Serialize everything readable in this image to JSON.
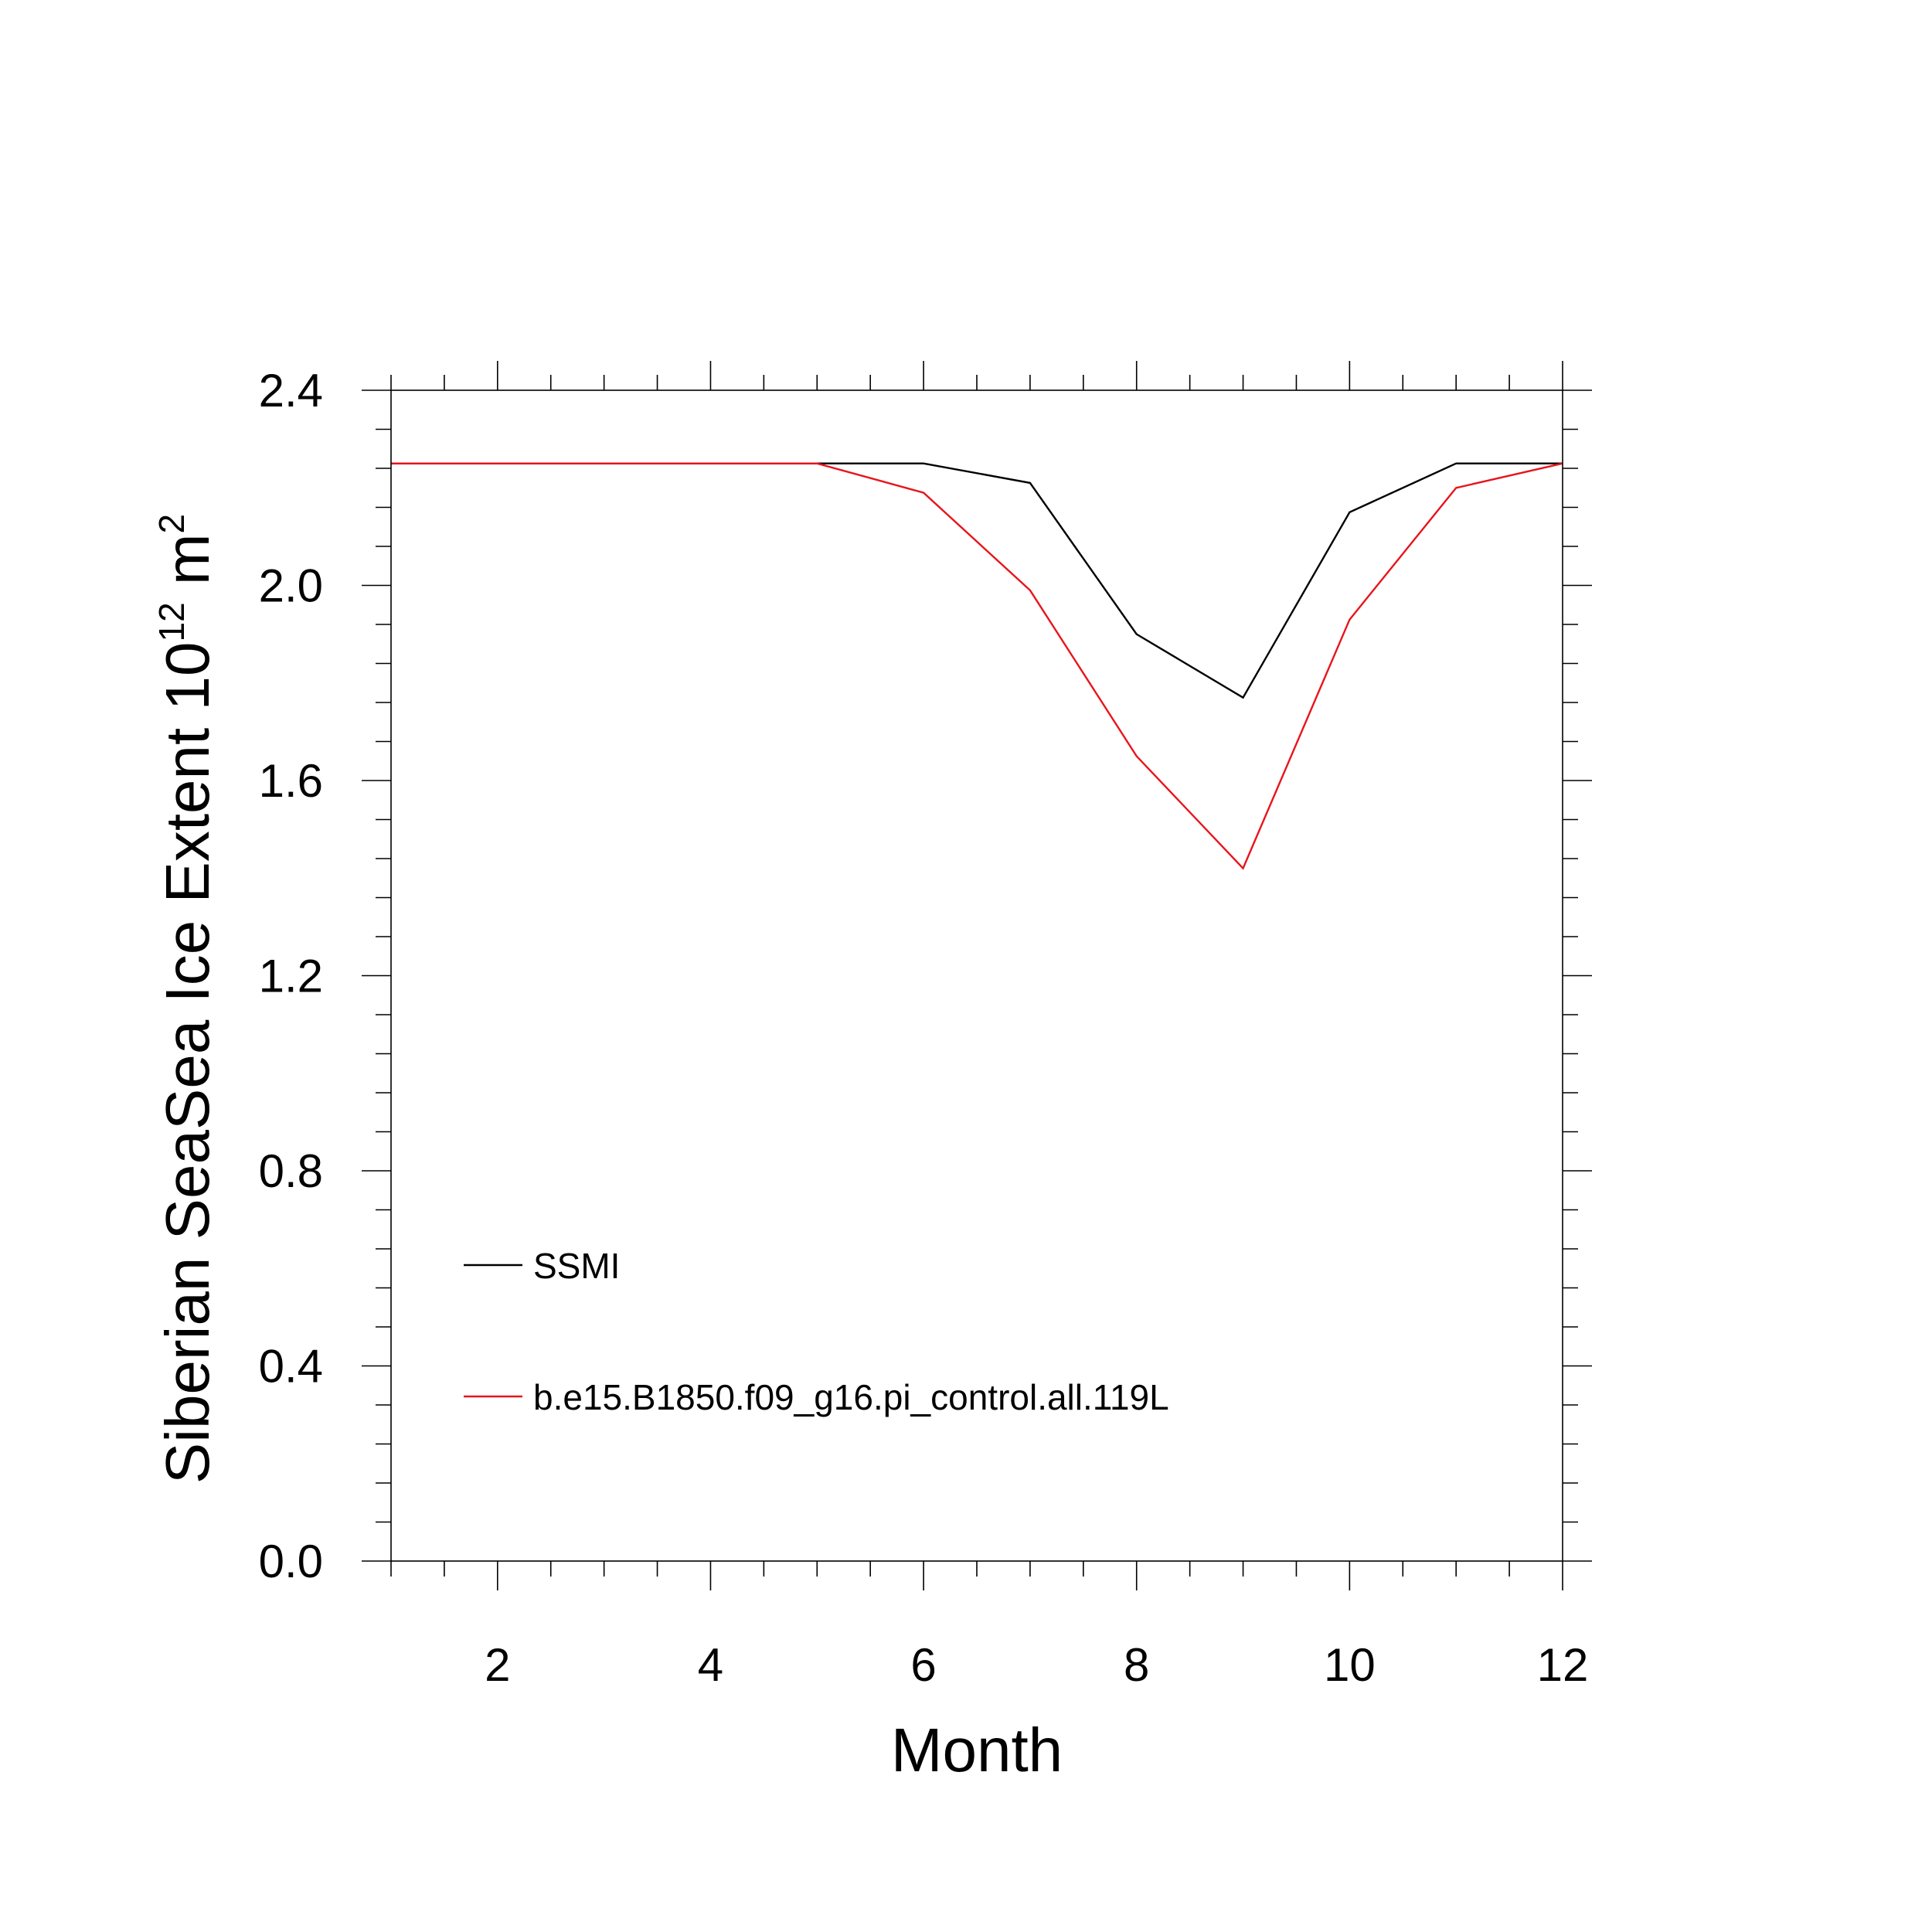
{
  "chart_data": {
    "type": "line",
    "xlabel": "Month",
    "ylabel": {
      "text": "Siberian SeaSea Ice Extent 10",
      "exponent": "12",
      "unit": " m",
      "unit_exponent": "2"
    },
    "xlim": [
      1,
      12
    ],
    "ylim": [
      0.0,
      2.4
    ],
    "x_ticks": [
      2,
      4,
      6,
      8,
      10,
      12
    ],
    "x_tick_labels": [
      "2",
      "4",
      "6",
      "8",
      "10",
      "12"
    ],
    "y_ticks": [
      0.0,
      0.4,
      0.8,
      1.2,
      1.6,
      2.0,
      2.4
    ],
    "y_tick_labels": [
      "0.0",
      "0.4",
      "0.8",
      "1.2",
      "1.6",
      "2.0",
      "2.4"
    ],
    "x": [
      1,
      2,
      3,
      4,
      5,
      6,
      7,
      8,
      9,
      10,
      11,
      12
    ],
    "series": [
      {
        "name": "SSMI",
        "color": "#000000",
        "values": [
          2.25,
          2.25,
          2.25,
          2.25,
          2.25,
          2.25,
          2.21,
          1.9,
          1.77,
          2.15,
          2.25,
          2.25
        ]
      },
      {
        "name": "b.e15.B1850.f09_g16.pi_control.all.119L",
        "color": "#e8141b",
        "values": [
          2.25,
          2.25,
          2.25,
          2.25,
          2.25,
          2.19,
          1.99,
          1.65,
          1.42,
          1.93,
          2.2,
          2.25
        ]
      }
    ],
    "legend": "bottom-left, inside plot",
    "grid": false
  }
}
